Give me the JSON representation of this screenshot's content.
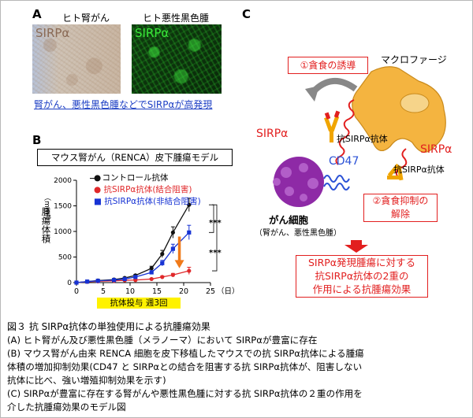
{
  "panel_a": {
    "label": "A",
    "left_title": "ヒト腎がん",
    "right_title": "ヒト悪性黒色腫",
    "left_stain": "SIRPα",
    "right_stain": "SIRPα",
    "caption": "腎がん、悪性黒色腫などでSIRPαが高発現",
    "colors": {
      "caption": "#1d3fc4",
      "left_stain": "#8a6a55",
      "right_stain": "#39e839"
    }
  },
  "panel_b": {
    "label": "B",
    "model_title": "マウス腎がん（RENCA）皮下腫瘍モデル",
    "ylabel": "腫瘍体積",
    "yunit": "（mm³）",
    "xunit": "（日）",
    "significance": [
      "***",
      "***"
    ],
    "treatment_label": "抗体投与  週3回",
    "legend": [
      {
        "name": "コントロール抗体",
        "color": "#111111"
      },
      {
        "name": "抗SIRPα抗体(結合阻害)",
        "color": "#e0282a"
      },
      {
        "name": "抗SIRPα抗体(非結合阻害)",
        "color": "#1733d4"
      }
    ]
  },
  "chart_data": {
    "type": "line",
    "x": [
      0,
      2,
      4,
      7,
      9,
      11,
      14,
      16,
      18,
      21
    ],
    "series": [
      {
        "name": "コントロール抗体",
        "values": [
          0,
          20,
          40,
          60,
          90,
          140,
          280,
          560,
          980,
          1520
        ],
        "error": [
          0,
          5,
          8,
          10,
          15,
          20,
          40,
          70,
          110,
          130
        ]
      },
      {
        "name": "抗SIRPα抗体(結合阻害)",
        "values": [
          0,
          15,
          25,
          35,
          45,
          50,
          70,
          110,
          150,
          230
        ],
        "error": [
          0,
          5,
          5,
          6,
          8,
          10,
          12,
          20,
          30,
          70
        ]
      },
      {
        "name": "抗SIRPα抗体(非結合阻害)",
        "values": [
          0,
          20,
          35,
          50,
          70,
          110,
          200,
          380,
          660,
          980
        ],
        "error": [
          0,
          5,
          8,
          10,
          12,
          18,
          35,
          55,
          90,
          140
        ]
      }
    ],
    "xlim": [
      0,
      25
    ],
    "ylim": [
      0,
      2000
    ],
    "xticks": [
      0,
      5,
      10,
      15,
      20,
      25
    ],
    "yticks": [
      0,
      500,
      1000,
      1500,
      2000
    ],
    "treatment_days": [
      0,
      21
    ]
  },
  "panel_c": {
    "label": "C",
    "step1": "①貪食の誘導",
    "macrophage": "マクロファージ",
    "sirpa_left": "SIRPα",
    "sirpa_right": "SIRPα",
    "antibody_top": "抗SIRPα抗体",
    "antibody_bottom": "抗SIRPα抗体",
    "cd47": "CD47",
    "cancer_cell": "がん細胞",
    "cancer_types": "（腎がん、悪性黒色腫）",
    "step2_line1": "②貪食抑制の",
    "step2_line2": "解除",
    "result": [
      "SIRPα発現腫瘍に対する",
      "抗SIRPα抗体の2重の",
      "作用による抗腫瘍効果"
    ],
    "colors": {
      "red": "#e21f1f",
      "macrophage": "#f4b440",
      "cancer": "#8e2aa6",
      "cd47": "#2b52d6"
    }
  },
  "caption": {
    "title": "図３  抗 SIRPα抗体の単独使用による抗腫瘍効果",
    "lines": [
      "(A)  ヒト腎がん及び悪性黒色腫（メラノーマ）において SIRPαが豊富に存在",
      "(B)  マウス腎がん由来 RENCA 細胞を皮下移植したマウスでの抗 SIRPα抗体による腫瘍",
      "体積の増加抑制効果(CD47 と SIRPαとの結合を阻害する抗 SIRPα抗体が、阻害しない",
      "抗体に比べ、強い増殖抑制効果を示す)",
      "(C) SIRPαが豊富に存在する腎がんや悪性黒色腫に対する抗 SIRPα抗体の２重の作用を",
      "介した抗腫瘍効果のモデル図"
    ]
  }
}
